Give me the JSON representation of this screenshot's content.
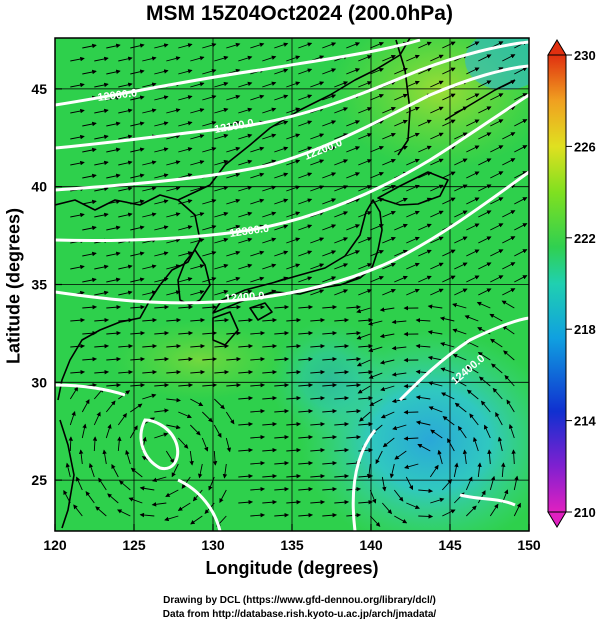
{
  "title": "MSM 15Z04Oct2024 (200.0hPa)",
  "xaxis": {
    "label": "Longitude (degrees)",
    "range": [
      120,
      150
    ],
    "ticks": [
      "120",
      "125",
      "130",
      "135",
      "140",
      "145",
      "150"
    ]
  },
  "yaxis": {
    "label": "Latitude  (degrees)",
    "range": [
      22.4,
      47.6
    ],
    "ticks": [
      "25",
      "30",
      "35",
      "40",
      "45"
    ]
  },
  "colorbar": {
    "range": [
      210,
      230
    ],
    "ticks": [
      "230",
      "226",
      "222",
      "218",
      "214",
      "210"
    ],
    "colors": [
      "#e020c0",
      "#8020d0",
      "#1030d0",
      "#10a0e0",
      "#20d0b0",
      "#30d050",
      "#80e020",
      "#e0e020",
      "#f0a020",
      "#e03010"
    ]
  },
  "contours": [
    {
      "label": "12000.0"
    },
    {
      "label": "12100.0"
    },
    {
      "label": "12200.0"
    },
    {
      "label": "12300.0"
    },
    {
      "label": "12400.0"
    },
    {
      "label": "12400.0"
    }
  ],
  "footer": {
    "line1": "Drawing by DCL (https://www.gfd-dennou.org/library/dcl/)",
    "line2": "Data from http://database.rish.kyoto-u.ac.jp/arch/jmadata/"
  }
}
